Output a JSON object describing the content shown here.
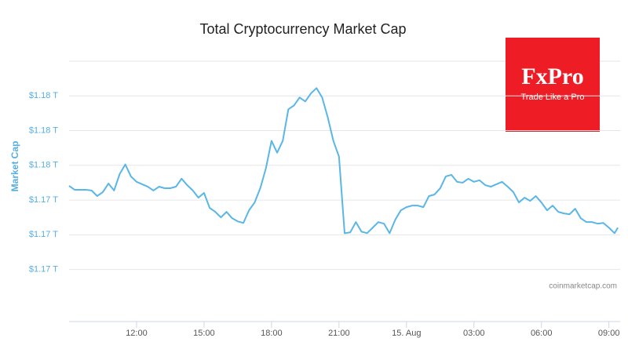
{
  "chart_data": {
    "type": "line",
    "title": "Total Cryptocurrency Market Cap",
    "ylabel": "Market Cap",
    "credits": "coinmarketcap.com",
    "watermark": "FxPro",
    "watermark_tagline": "Trade Like a Pro",
    "color": "#5ab6e6",
    "grid": true,
    "xlim": [
      9,
      33.5
    ],
    "xticks": [
      {
        "value": 12,
        "label": "12:00"
      },
      {
        "value": 15,
        "label": "15:00"
      },
      {
        "value": 18,
        "label": "18:00"
      },
      {
        "value": 21,
        "label": "21:00"
      },
      {
        "value": 24,
        "label": "15. Aug"
      },
      {
        "value": 27,
        "label": "03:00"
      },
      {
        "value": 30,
        "label": "06:00"
      },
      {
        "value": 33,
        "label": "09:00"
      }
    ],
    "ylim": [
      1.167,
      1.182
    ],
    "yticks": [
      {
        "value": 1.18,
        "label": "$1.18 T"
      },
      {
        "value": 1.178,
        "label": "$1.18 T"
      },
      {
        "value": 1.176,
        "label": "$1.18 T"
      },
      {
        "value": 1.174,
        "label": "$1.17 T"
      },
      {
        "value": 1.172,
        "label": "$1.17 T"
      },
      {
        "value": 1.17,
        "label": "$1.17 T"
      }
    ],
    "x": [
      9,
      9.25,
      9.5,
      9.75,
      10,
      10.25,
      10.5,
      10.75,
      11,
      11.25,
      11.5,
      11.75,
      12,
      12.25,
      12.5,
      12.75,
      13,
      13.25,
      13.5,
      13.75,
      14,
      14.25,
      14.5,
      14.75,
      15,
      15.25,
      15.5,
      15.75,
      16,
      16.25,
      16.5,
      16.75,
      17,
      17.25,
      17.5,
      17.75,
      18,
      18.25,
      18.5,
      18.75,
      19,
      19.25,
      19.5,
      19.75,
      20,
      20.25,
      20.5,
      20.75,
      21,
      21.25,
      21.5,
      21.75,
      22,
      22.25,
      22.5,
      22.75,
      23,
      23.25,
      23.5,
      23.75,
      24,
      24.25,
      24.5,
      24.75,
      25,
      25.25,
      25.5,
      25.75,
      26,
      26.25,
      26.5,
      26.75,
      27,
      27.25,
      27.5,
      27.75,
      28,
      28.25,
      28.5,
      28.75,
      29,
      29.25,
      29.5,
      29.75,
      30,
      30.25,
      30.5,
      30.75,
      31,
      31.25,
      31.5,
      31.75,
      32,
      32.25,
      32.5,
      32.75,
      33,
      33.25,
      33.4
    ],
    "values": [
      1.17482,
      1.17459,
      1.17459,
      1.17459,
      1.17455,
      1.17423,
      1.17446,
      1.17495,
      1.17455,
      1.1755,
      1.17605,
      1.17536,
      1.17505,
      1.17491,
      1.17477,
      1.17455,
      1.17477,
      1.17468,
      1.17468,
      1.17477,
      1.17523,
      1.17486,
      1.17455,
      1.17414,
      1.17441,
      1.17355,
      1.17332,
      1.173,
      1.17332,
      1.17295,
      1.17277,
      1.17268,
      1.17341,
      1.17386,
      1.17468,
      1.17582,
      1.17741,
      1.17673,
      1.17741,
      1.17923,
      1.17945,
      1.17991,
      1.17968,
      1.18014,
      1.18045,
      1.17991,
      1.17877,
      1.17741,
      1.1765,
      1.17209,
      1.17214,
      1.17273,
      1.17218,
      1.17209,
      1.17241,
      1.17273,
      1.17264,
      1.17209,
      1.17286,
      1.17341,
      1.17359,
      1.17368,
      1.17368,
      1.17359,
      1.17423,
      1.17432,
      1.17468,
      1.17536,
      1.17545,
      1.17505,
      1.175,
      1.17523,
      1.17505,
      1.17514,
      1.17486,
      1.17477,
      1.17491,
      1.17505,
      1.17477,
      1.17446,
      1.17386,
      1.17414,
      1.17395,
      1.17423,
      1.17386,
      1.17341,
      1.17368,
      1.17332,
      1.17323,
      1.17318,
      1.1735,
      1.17295,
      1.17273,
      1.17273,
      1.17264,
      1.17268,
      1.17241,
      1.17209,
      1.17241
    ]
  }
}
